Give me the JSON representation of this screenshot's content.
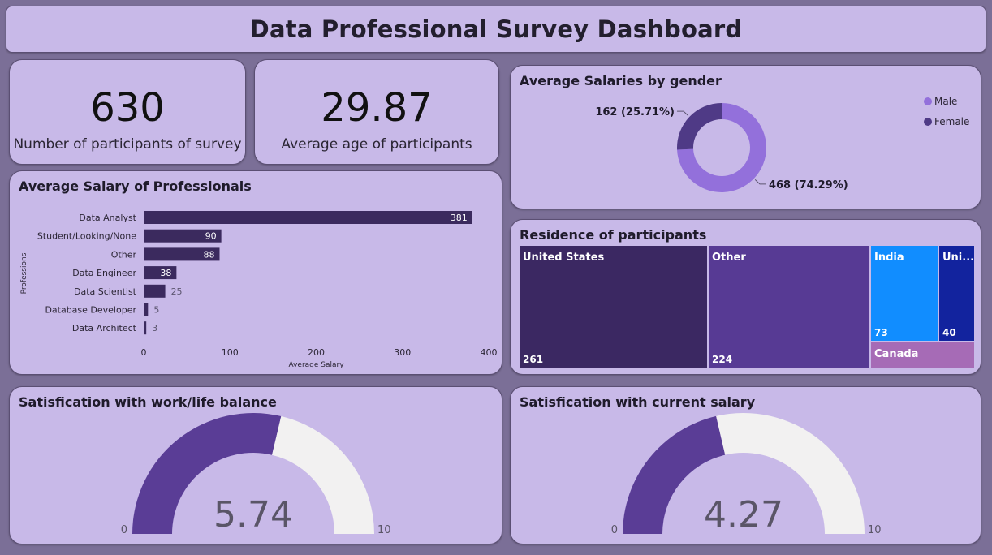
{
  "title": "Data Professional Survey Dashboard",
  "kpis": {
    "participants": {
      "value": "630",
      "label": "Number of participants of survey"
    },
    "avg_age": {
      "value": "29.87",
      "label": "Average age of participants"
    }
  },
  "colors": {
    "card_bg": "#c8b9e8",
    "bar": "#3b2a5e",
    "male": "#9370db",
    "female": "#4f3a86",
    "gauge_fill": "#5a3d96",
    "gauge_rest": "#f2f1f1"
  },
  "chart_data": [
    {
      "id": "salary_by_profession",
      "type": "bar",
      "orientation": "horizontal",
      "title": "Average Salary of Professionals",
      "categories": [
        "Data Analyst",
        "Student/Looking/None",
        "Other",
        "Data Engineer",
        "Data Scientist",
        "Database Developer",
        "Data Architect"
      ],
      "values": [
        381,
        90,
        88,
        38,
        25,
        5,
        3
      ],
      "xlabel": "Average Salary",
      "ylabel": "Professions",
      "xlim": [
        0,
        400
      ],
      "xticks": [
        0,
        100,
        200,
        300,
        400
      ]
    },
    {
      "id": "salary_by_gender",
      "type": "pie",
      "variant": "donut",
      "title": "Average Salaries by gender",
      "categories": [
        "Male",
        "Female"
      ],
      "values": [
        468,
        162
      ],
      "labels": [
        "468 (74.29%)",
        "162 (25.71%)"
      ],
      "legend": "top-right"
    },
    {
      "id": "residence",
      "type": "treemap",
      "title": "Residence of participants",
      "categories": [
        "United States",
        "Other",
        "India",
        "Uni...",
        "Canada"
      ],
      "values": [
        261,
        224,
        73,
        40,
        null
      ],
      "value_labels": [
        "261",
        "224",
        "73",
        "40",
        ""
      ],
      "colors": [
        "#3b2862",
        "#573a94",
        "#118dff",
        "#12239e",
        "#a66bb6"
      ]
    },
    {
      "id": "worklife_satisfaction",
      "type": "gauge",
      "title": "Satisfication with work/life balance",
      "value": 5.74,
      "value_label": "5.74",
      "min": 0,
      "max": 10,
      "min_label": "0",
      "max_label": "10"
    },
    {
      "id": "salary_satisfaction",
      "type": "gauge",
      "title": "Satisfication with current salary",
      "value": 4.27,
      "value_label": "4.27",
      "min": 0,
      "max": 10,
      "min_label": "0",
      "max_label": "10"
    }
  ]
}
